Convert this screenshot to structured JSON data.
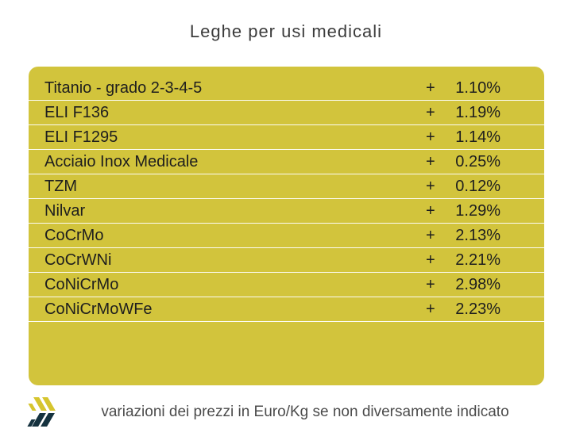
{
  "title": "Leghe per usi medicali",
  "table": {
    "rows": [
      {
        "name": "Titanio - grado 2-3-4-5",
        "sign": "+",
        "value": "1.10%"
      },
      {
        "name": "ELI F136",
        "sign": "+",
        "value": "1.19%"
      },
      {
        "name": "ELI F1295",
        "sign": "+",
        "value": "1.14%"
      },
      {
        "name": "Acciaio Inox Medicale",
        "sign": "+",
        "value": "0.25%"
      },
      {
        "name": "TZM",
        "sign": "+",
        "value": "0.12%"
      },
      {
        "name": "Nilvar",
        "sign": "+",
        "value": "1.29%"
      },
      {
        "name": "CoCrMo",
        "sign": "+",
        "value": "2.13%"
      },
      {
        "name": "CoCrWNi",
        "sign": "+",
        "value": "2.21%"
      },
      {
        "name": "CoNiCrMo",
        "sign": "+",
        "value": "2.98%"
      },
      {
        "name": "CoNiCrMoWFe",
        "sign": "+",
        "value": "2.23%"
      }
    ]
  },
  "footer": {
    "note": "variazioni dei prezzi in Euro/Kg se non diversamente indicato",
    "logo": "brand-slashes-logo"
  },
  "colors": {
    "table_bg": "#d2c43c",
    "title_text": "#3c3c3c",
    "row_text": "#1e1e1e",
    "separator": "#fcfcf4",
    "footer_text": "#4b4b4b",
    "logo_yellow": "#d6c52e",
    "logo_navy": "#15323f"
  }
}
